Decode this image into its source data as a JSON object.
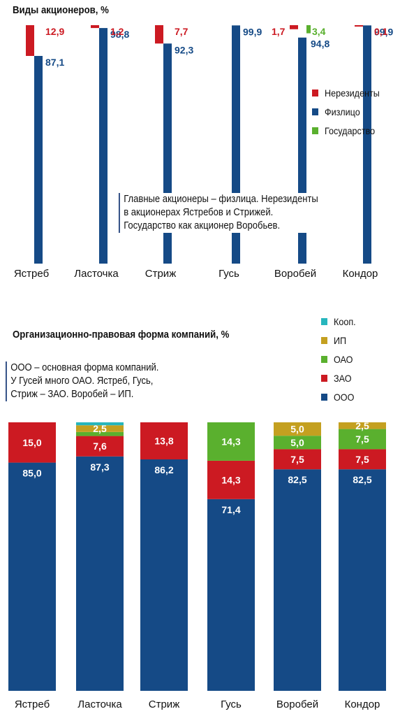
{
  "colors": {
    "nonres": "#cc1a22",
    "phys": "#154a86",
    "state": "#5ab02e",
    "coop": "#27b6bd",
    "ip": "#c4a020",
    "oao": "#5ab02e",
    "zao": "#cc1a22",
    "ooo": "#154a86"
  },
  "chart1": {
    "title": "Виды акционеров, %",
    "note": [
      "Главные акционеры – физлица. Нерезиденты",
      "в акционерах Ястребов и Стрижей.",
      "Государство как акционер Воробьев."
    ],
    "legend": [
      "Нерезиденты",
      "Физлицо",
      "Государство"
    ]
  },
  "chart2": {
    "title": "Организационно-правовая форма компаний, %",
    "note": [
      "ООО – основная форма компаний.",
      "У Гусей много ОАО. Ястреб, Гусь,",
      "Стриж – ЗАО. Воробей – ИП."
    ],
    "legend": [
      "Кооп.",
      "ИП",
      "ОАО",
      "ЗАО",
      "ООО"
    ]
  },
  "chart_data": [
    {
      "type": "bar",
      "title": "Виды акционеров, %",
      "categories": [
        "Ястреб",
        "Ласточка",
        "Стриж",
        "Гусь",
        "Воробей",
        "Кондор"
      ],
      "ylim": [
        0,
        100
      ],
      "legend_position": "right",
      "series": [
        {
          "name": "Нерезиденты",
          "values": [
            12.9,
            1.2,
            7.7,
            0,
            1.7,
            0.1
          ],
          "labels": [
            "12,9",
            "1,2",
            "7,7",
            "",
            "1,7",
            "0,1"
          ]
        },
        {
          "name": "Физлицо",
          "values": [
            87.1,
            98.8,
            92.3,
            99.9,
            94.8,
            99.9
          ],
          "labels": [
            "87,1",
            "98,8",
            "92,3",
            "99,9",
            "94,8",
            "99,9"
          ]
        },
        {
          "name": "Государство",
          "values": [
            0,
            0,
            0,
            0,
            3.4,
            0
          ],
          "labels": [
            "",
            "",
            "",
            "",
            "3,4",
            ""
          ]
        }
      ]
    },
    {
      "type": "bar",
      "stacked": true,
      "title": "Организационно-правовая форма компаний, %",
      "categories": [
        "Ястреб",
        "Ласточка",
        "Стриж",
        "Гусь",
        "Воробей",
        "Кондор"
      ],
      "ylim": [
        0,
        100
      ],
      "legend_position": "top-right",
      "series": [
        {
          "name": "ООО",
          "values": [
            85.0,
            87.3,
            86.2,
            71.4,
            82.5,
            82.5
          ],
          "labels": [
            "85,0",
            "87,3",
            "86,2",
            "71,4",
            "82,5",
            "82,5"
          ]
        },
        {
          "name": "ЗАО",
          "values": [
            15.0,
            7.6,
            13.8,
            14.3,
            7.5,
            7.5
          ],
          "labels": [
            "15,0",
            "7,6",
            "13,8",
            "14,3",
            "7,5",
            "7,5"
          ]
        },
        {
          "name": "ОАО",
          "values": [
            0,
            1.5,
            0,
            14.3,
            5.0,
            7.5
          ],
          "labels": [
            "",
            "",
            "",
            "14,3",
            "5,0",
            "7,5"
          ]
        },
        {
          "name": "ИП",
          "values": [
            0,
            2.5,
            0,
            0,
            5.0,
            2.5
          ],
          "labels": [
            "",
            "2,5",
            "",
            "",
            "5,0",
            "2,5"
          ]
        },
        {
          "name": "Кооп.",
          "values": [
            0,
            1.1,
            0,
            0,
            0,
            0
          ],
          "labels": [
            "",
            "",
            "",
            "",
            "",
            ""
          ]
        }
      ]
    }
  ]
}
